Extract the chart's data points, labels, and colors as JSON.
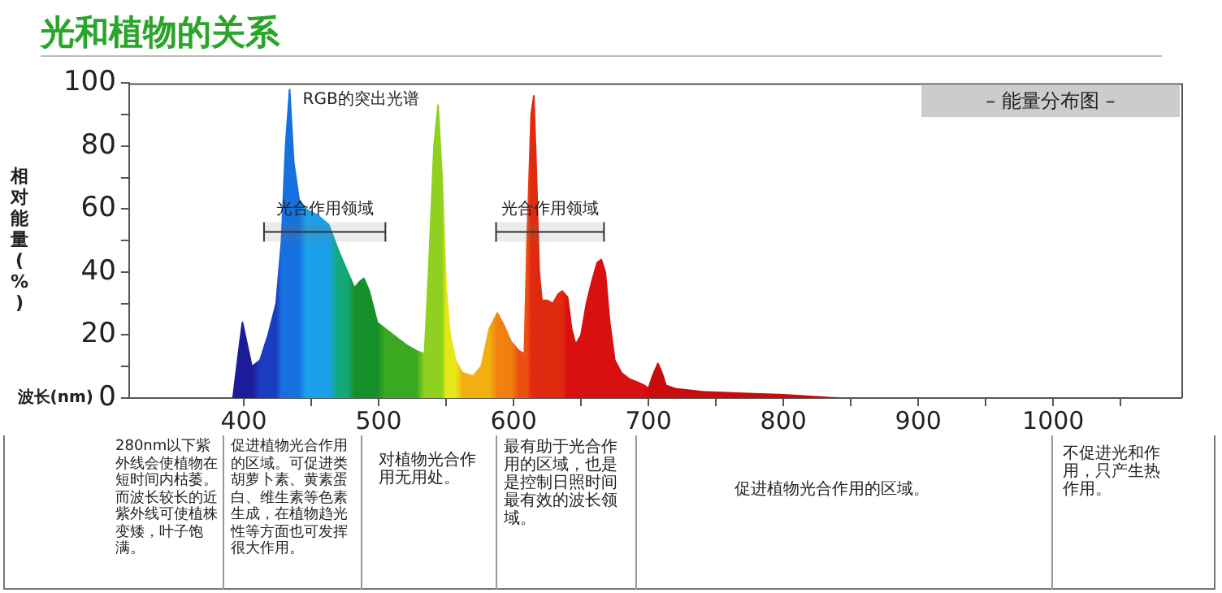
{
  "chart_data": {
    "type": "area",
    "title": "光和植物的关系",
    "subtitle": "– 能量分布图 –",
    "xlabel": "波长(nm)",
    "ylabel": "相对能量(%)",
    "x": [
      392,
      396,
      399,
      402,
      406,
      412,
      418,
      424,
      428,
      431,
      434,
      437,
      441,
      446,
      455,
      463,
      470,
      477,
      482,
      486,
      489,
      493,
      499,
      505,
      511,
      520,
      528,
      534,
      537,
      541,
      544,
      547,
      550,
      553,
      557,
      562,
      570,
      576,
      582,
      588,
      593,
      598,
      604,
      608,
      610,
      613,
      615,
      617,
      619,
      621,
      625,
      629,
      633,
      636,
      640,
      643,
      646,
      650,
      654,
      658,
      662,
      665,
      668,
      671,
      675,
      680,
      686,
      692,
      697,
      700,
      703,
      707,
      710,
      713,
      720,
      740,
      770,
      800,
      840
    ],
    "values": [
      0,
      14,
      24,
      18,
      10,
      12,
      20,
      30,
      50,
      80,
      98,
      75,
      63,
      60,
      58,
      55,
      47,
      40,
      35,
      37,
      38,
      34,
      24,
      22,
      20,
      17,
      15,
      14,
      40,
      80,
      93,
      70,
      35,
      20,
      12,
      8,
      7,
      10,
      22,
      27,
      23,
      18,
      15,
      14,
      50,
      90,
      96,
      70,
      40,
      31,
      31,
      30,
      33,
      34,
      32,
      22,
      17,
      20,
      30,
      37,
      43,
      44,
      40,
      25,
      12,
      8,
      6,
      5,
      4,
      3,
      7,
      11,
      8,
      4,
      3,
      2,
      1.5,
      1,
      0
    ],
    "colors": [
      "#1c1c9a",
      "#1c1c9a",
      "#1c1c9a",
      "#1c1c9a",
      "#1c1c9a",
      "#1a3cc0",
      "#1a3cc0",
      "#1a3cc0",
      "#1670e0",
      "#1670e0",
      "#1670e0",
      "#1670e0",
      "#1670e0",
      "#1aa0e8",
      "#1aa0e8",
      "#1aa0e8",
      "#12a878",
      "#12a878",
      "#16902a",
      "#16902a",
      "#16902a",
      "#16902a",
      "#16902a",
      "#3aa820",
      "#3aa820",
      "#3aa820",
      "#3aa820",
      "#90d020",
      "#90d020",
      "#90d020",
      "#90d020",
      "#90d020",
      "#e8e818",
      "#e8e818",
      "#e8e818",
      "#f2b010",
      "#f2b010",
      "#f2b010",
      "#f2b010",
      "#f08010",
      "#f08010",
      "#f08010",
      "#ec5010",
      "#ec5010",
      "#ec5010",
      "#e02a10",
      "#e02a10",
      "#e02a10",
      "#e02a10",
      "#e02a10",
      "#e02a10",
      "#e02a10",
      "#e02a10",
      "#e02a10",
      "#d81010",
      "#d81010",
      "#d81010",
      "#d81010",
      "#d81010",
      "#d81010",
      "#d81010",
      "#d81010",
      "#d81010",
      "#d81010",
      "#d81010",
      "#d81010",
      "#d81010",
      "#d81010",
      "#d81010",
      "#c80c0c",
      "#c80c0c",
      "#c80c0c",
      "#c80c0c",
      "#c80c0c",
      "#c80c0c",
      "#c80c0c",
      "#c80c0c",
      "#c80c0c",
      "#c80c0c"
    ],
    "xlim": [
      315,
      1095
    ],
    "xticks": [
      400,
      {
        "value": 450,
        "label": null
      },
      500,
      {
        "value": 550,
        "label": null
      },
      600,
      {
        "value": 650,
        "label": null
      },
      700,
      {
        "value": 750,
        "label": null
      },
      800,
      {
        "value": 850,
        "label": null
      },
      900,
      {
        "value": 950,
        "label": null
      },
      1000,
      {
        "value": 1050,
        "label": null
      }
    ],
    "ylim": [
      0,
      100
    ],
    "yticks": [
      0,
      {
        "value": 10,
        "label": null
      },
      20,
      {
        "value": 30,
        "label": null
      },
      40,
      {
        "value": 50,
        "label": null
      },
      60,
      {
        "value": 70,
        "label": null
      },
      80,
      {
        "value": 90,
        "label": null
      },
      100
    ],
    "grid": false,
    "legend": false,
    "marker": "none",
    "bands": [
      {
        "axis": "x",
        "from": 415,
        "to": 505,
        "label": "光合作用领域"
      },
      {
        "axis": "x",
        "from": 587,
        "to": 667,
        "label": "光合作用领域"
      }
    ],
    "annotations": [
      "RGB的突出光谱",
      "280nm以下紫外线会使植物在短时间内枯萎。而波长较长的近紫外线可使植株变矮，叶子饱满。",
      "促进植物光合作用的区域。可促进类胡萝卜素、黄素蛋白、维生素等色素生成，在植物趋光性等方面也可发挥很大作用。",
      "对植物光合作用无用处。",
      "最有助于光合作用的区域，也是是控制日照时间最有效的波长领域。",
      "促进植物光合作用的区域。",
      "不促进光和作用，只产生热作用。"
    ]
  }
}
